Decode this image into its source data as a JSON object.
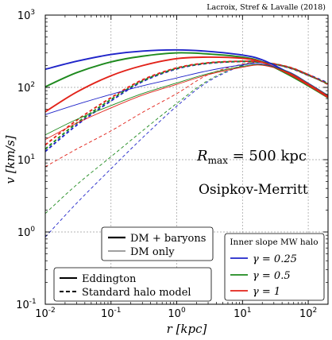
{
  "credit": "Lacroix, Stref & Lavalle (2018)",
  "chart_data": {
    "type": "line",
    "xlabel": "r [kpc]",
    "ylabel": "v [km/s]",
    "xscale": "log",
    "yscale": "log",
    "xlim": [
      0.01,
      200
    ],
    "ylim": [
      0.1,
      1000
    ],
    "grid": true,
    "x_ticks": [
      {
        "value": 0.01,
        "base": "10",
        "exp": "-2"
      },
      {
        "value": 0.1,
        "base": "10",
        "exp": "-1"
      },
      {
        "value": 1,
        "base": "10",
        "exp": "0"
      },
      {
        "value": 10,
        "base": "10",
        "exp": "1"
      },
      {
        "value": 100,
        "base": "10",
        "exp": "2"
      }
    ],
    "y_ticks": [
      {
        "value": 0.1,
        "base": "10",
        "exp": "-1"
      },
      {
        "value": 1,
        "base": "10",
        "exp": "0"
      },
      {
        "value": 10,
        "base": "10",
        "exp": "1"
      },
      {
        "value": 100,
        "base": "10",
        "exp": "2"
      },
      {
        "value": 1000,
        "base": "10",
        "exp": "3"
      }
    ],
    "annotations": {
      "rmax_label": "R",
      "rmax_sub": "max",
      "rmax_value": " = 500 kpc",
      "model_label": "Osipkov-Merritt"
    },
    "legend_width": {
      "position": "lower-center",
      "entries": [
        {
          "label": "DM + baryons",
          "style": "thick"
        },
        {
          "label": "DM only",
          "style": "thin"
        }
      ]
    },
    "legend_method": {
      "position": "lower-left",
      "entries": [
        {
          "label": "Eddington",
          "style": "solid"
        },
        {
          "label": "Standard halo model",
          "style": "dashed"
        }
      ]
    },
    "legend_slope": {
      "position": "lower-right",
      "title": "Inner slope MW halo",
      "entries": [
        {
          "label": "γ = 0.25",
          "color": "#1f24c9"
        },
        {
          "label": "γ = 0.5",
          "color": "#1e8a1e"
        },
        {
          "label": "γ = 1",
          "color": "#e2231a"
        }
      ]
    },
    "series": [
      {
        "gamma": 0.25,
        "color": "#1f24c9",
        "method": "Eddington",
        "halo": "DM + baryons",
        "x": [
          0.01,
          0.03,
          0.1,
          0.3,
          1,
          3,
          10,
          20,
          50,
          100,
          200
        ],
        "y": [
          178,
          230,
          285,
          318,
          330,
          315,
          280,
          240,
          160,
          110,
          75
        ]
      },
      {
        "gamma": 0.5,
        "color": "#1e8a1e",
        "method": "Eddington",
        "halo": "DM + baryons",
        "x": [
          0.01,
          0.03,
          0.1,
          0.3,
          1,
          3,
          10,
          20,
          50,
          100,
          200
        ],
        "y": [
          102,
          160,
          225,
          270,
          300,
          290,
          262,
          225,
          150,
          105,
          72
        ]
      },
      {
        "gamma": 1,
        "color": "#e2231a",
        "method": "Eddington",
        "halo": "DM + baryons",
        "x": [
          0.01,
          0.03,
          0.1,
          0.3,
          1,
          3,
          10,
          20,
          50,
          100,
          200
        ],
        "y": [
          46,
          86,
          145,
          200,
          250,
          262,
          252,
          222,
          155,
          108,
          73
        ]
      },
      {
        "gamma": 0.25,
        "color": "#1f24c9",
        "method": "Eddington",
        "halo": "DM only",
        "x": [
          0.01,
          0.03,
          0.1,
          0.3,
          1,
          3,
          10,
          20,
          50,
          100,
          200
        ],
        "y": [
          42,
          58,
          80,
          105,
          135,
          170,
          205,
          210,
          165,
          115,
          78
        ]
      },
      {
        "gamma": 0.5,
        "color": "#1e8a1e",
        "method": "Eddington",
        "halo": "DM only",
        "x": [
          0.01,
          0.03,
          0.1,
          0.3,
          1,
          3,
          10,
          20,
          50,
          100,
          200
        ],
        "y": [
          22,
          36,
          56,
          82,
          115,
          155,
          195,
          205,
          162,
          113,
          77
        ]
      },
      {
        "gamma": 1,
        "color": "#e2231a",
        "method": "Eddington",
        "halo": "DM only",
        "x": [
          0.01,
          0.03,
          0.1,
          0.3,
          1,
          3,
          10,
          20,
          50,
          100,
          200
        ],
        "y": [
          19,
          32,
          52,
          78,
          110,
          150,
          190,
          202,
          160,
          112,
          76
        ]
      },
      {
        "gamma": 0.25,
        "color": "#1f24c9",
        "method": "Standard halo model",
        "halo": "DM + baryons",
        "x": [
          0.01,
          0.03,
          0.1,
          0.3,
          1,
          3,
          10,
          20,
          50,
          100,
          200
        ],
        "y": [
          13,
          30,
          65,
          120,
          180,
          215,
          228,
          222,
          190,
          150,
          115
        ]
      },
      {
        "gamma": 0.5,
        "color": "#1e8a1e",
        "method": "Standard halo model",
        "halo": "DM + baryons",
        "x": [
          0.01,
          0.03,
          0.1,
          0.3,
          1,
          3,
          10,
          20,
          50,
          100,
          200
        ],
        "y": [
          14,
          32,
          68,
          123,
          183,
          217,
          229,
          223,
          190,
          148,
          112
        ]
      },
      {
        "gamma": 1,
        "color": "#e2231a",
        "method": "Standard halo model",
        "halo": "DM + baryons",
        "x": [
          0.01,
          0.03,
          0.1,
          0.3,
          1,
          3,
          10,
          20,
          50,
          100,
          200
        ],
        "y": [
          16,
          35,
          72,
          127,
          186,
          219,
          230,
          224,
          192,
          150,
          110
        ]
      },
      {
        "gamma": 0.25,
        "color": "#1f24c9",
        "method": "Standard halo model",
        "halo": "DM only",
        "x": [
          0.01,
          0.03,
          0.1,
          0.3,
          1,
          3,
          10,
          20,
          50,
          100,
          200
        ],
        "y": [
          0.85,
          2.5,
          7.5,
          20,
          55,
          120,
          200,
          220,
          185,
          145,
          112
        ]
      },
      {
        "gamma": 0.5,
        "color": "#1e8a1e",
        "method": "Standard halo model",
        "halo": "DM only",
        "x": [
          0.01,
          0.03,
          0.1,
          0.3,
          1,
          3,
          10,
          20,
          50,
          100,
          200
        ],
        "y": [
          1.8,
          4.5,
          11,
          25,
          60,
          125,
          203,
          221,
          187,
          146,
          112
        ]
      },
      {
        "gamma": 1,
        "color": "#e2231a",
        "method": "Standard halo model",
        "halo": "DM only",
        "x": [
          0.01,
          0.03,
          0.1,
          0.3,
          1,
          3,
          10,
          20,
          50,
          100,
          200
        ],
        "y": [
          8,
          14,
          25,
          45,
          82,
          150,
          210,
          222,
          188,
          147,
          113
        ]
      }
    ]
  }
}
